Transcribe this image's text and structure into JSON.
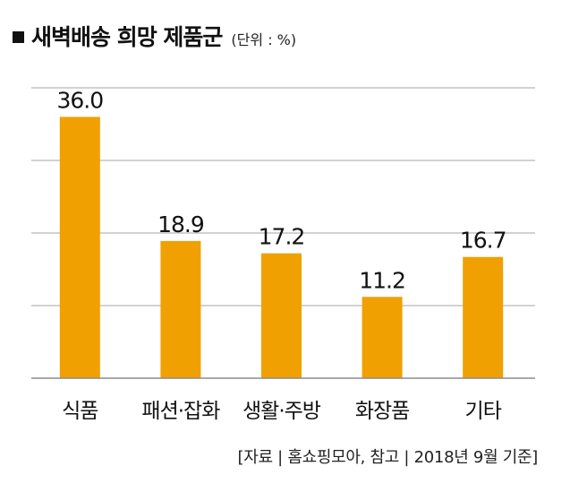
{
  "header": {
    "title": "새벽배송 희망 제품군",
    "unit": "(단위 : %)"
  },
  "chart_data": {
    "type": "bar",
    "categories": [
      "식품",
      "패션·잡화",
      "생활·주방",
      "화장품",
      "기타"
    ],
    "values": [
      36.0,
      18.9,
      17.2,
      11.2,
      16.7
    ],
    "value_labels": [
      "36.0",
      "18.9",
      "17.2",
      "11.2",
      "16.7"
    ],
    "title": "새벽배송 희망 제품군",
    "xlabel": "",
    "ylabel": "",
    "ylim": [
      0,
      40
    ],
    "grid": true,
    "bar_color": "#f0a000",
    "grid_color": "#a6a6a6"
  },
  "footer": {
    "source": "[자료 | 홈쇼핑모아, 참고 | 2018년 9월 기준]"
  }
}
